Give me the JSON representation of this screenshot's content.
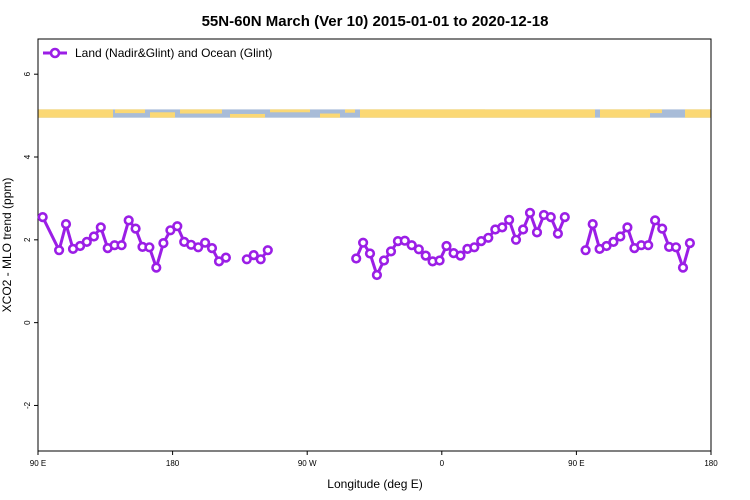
{
  "chart_data": {
    "type": "line",
    "title": "55N-60N March (Ver 10)   2015-01-01 to 2020-12-18",
    "xlabel": "Longitude (deg E)",
    "ylabel": "XCO2 - MLO trend (ppm)",
    "xlim": [
      90,
      450
    ],
    "ylim": [
      -3.1,
      6.85
    ],
    "x_ticks": [
      {
        "value": 90,
        "label": "90 E"
      },
      {
        "value": 162,
        "label": "180"
      },
      {
        "value": 234,
        "label": "90 W"
      },
      {
        "value": 306,
        "label": "0"
      },
      {
        "value": 378,
        "label": "90 E"
      },
      {
        "value": 450,
        "label": "180"
      }
    ],
    "y_ticks": [
      -2,
      0,
      2,
      4,
      6
    ],
    "legend": {
      "label": "Land (Nadir&Glint) and Ocean (Glint)",
      "position": "top-left"
    },
    "line_color": "#9b1ee6",
    "map_strip": {
      "y_range": [
        4.95,
        5.15
      ],
      "ocean_color": "#a8bcd8",
      "land_color": "#fbd874"
    },
    "series": [
      {
        "name": "Land (Nadir&Glint) and Ocean (Glint)",
        "segments": [
          [
            [
              92.5,
              2.55
            ],
            [
              101.3,
              1.75
            ],
            [
              105,
              2.38
            ],
            [
              108.7,
              1.78
            ],
            [
              112.5,
              1.85
            ],
            [
              116.1,
              1.95
            ],
            [
              119.9,
              2.08
            ],
            [
              123.6,
              2.3
            ],
            [
              127.3,
              1.8
            ],
            [
              131,
              1.87
            ],
            [
              134.7,
              1.87
            ],
            [
              138.5,
              2.47
            ],
            [
              142.2,
              2.27
            ],
            [
              145.9,
              1.83
            ],
            [
              149.6,
              1.82
            ],
            [
              153.3,
              1.33
            ],
            [
              157.1,
              1.92
            ],
            [
              160.8,
              2.23
            ],
            [
              164.5,
              2.33
            ],
            [
              168.2,
              1.95
            ],
            [
              171.9,
              1.88
            ],
            [
              175.7,
              1.82
            ],
            [
              179.4,
              1.93
            ],
            [
              183.1,
              1.8
            ],
            [
              186.8,
              1.48
            ],
            [
              190.5,
              1.57
            ]
          ],
          [
            [
              201.7,
              1.53
            ],
            [
              205.4,
              1.63
            ],
            [
              209.1,
              1.53
            ],
            [
              212.9,
              1.75
            ]
          ],
          [
            [
              260.2,
              1.55
            ],
            [
              263.9,
              1.93
            ],
            [
              267.6,
              1.67
            ],
            [
              271.3,
              1.15
            ],
            [
              275.1,
              1.5
            ],
            [
              278.8,
              1.72
            ],
            [
              282.5,
              1.97
            ],
            [
              286.2,
              1.98
            ],
            [
              289.9,
              1.87
            ],
            [
              293.7,
              1.77
            ],
            [
              297.4,
              1.62
            ],
            [
              301.1,
              1.48
            ],
            [
              304.8,
              1.5
            ],
            [
              308.5,
              1.85
            ],
            [
              312.3,
              1.68
            ],
            [
              316,
              1.62
            ],
            [
              319.7,
              1.78
            ],
            [
              323.4,
              1.82
            ],
            [
              327.1,
              1.97
            ],
            [
              330.9,
              2.05
            ],
            [
              334.6,
              2.25
            ],
            [
              338.3,
              2.3
            ],
            [
              342,
              2.48
            ],
            [
              345.7,
              2
            ],
            [
              349.5,
              2.25
            ],
            [
              353.2,
              2.65
            ],
            [
              356.9,
              2.18
            ],
            [
              360.6,
              2.6
            ],
            [
              364.3,
              2.55
            ],
            [
              368.1,
              2.15
            ],
            [
              371.8,
              2.55
            ]
          ],
          [
            [
              382.9,
              1.75
            ],
            [
              386.7,
              2.38
            ],
            [
              390.4,
              1.78
            ],
            [
              394.1,
              1.85
            ],
            [
              397.8,
              1.95
            ],
            [
              401.5,
              2.08
            ],
            [
              405.3,
              2.3
            ],
            [
              409,
              1.8
            ],
            [
              412.7,
              1.87
            ],
            [
              416.4,
              1.87
            ],
            [
              420.1,
              2.47
            ],
            [
              423.9,
              2.27
            ],
            [
              427.6,
              1.83
            ],
            [
              431.3,
              1.82
            ],
            [
              435,
              1.33
            ],
            [
              438.7,
              1.92
            ]
          ]
        ]
      }
    ]
  }
}
